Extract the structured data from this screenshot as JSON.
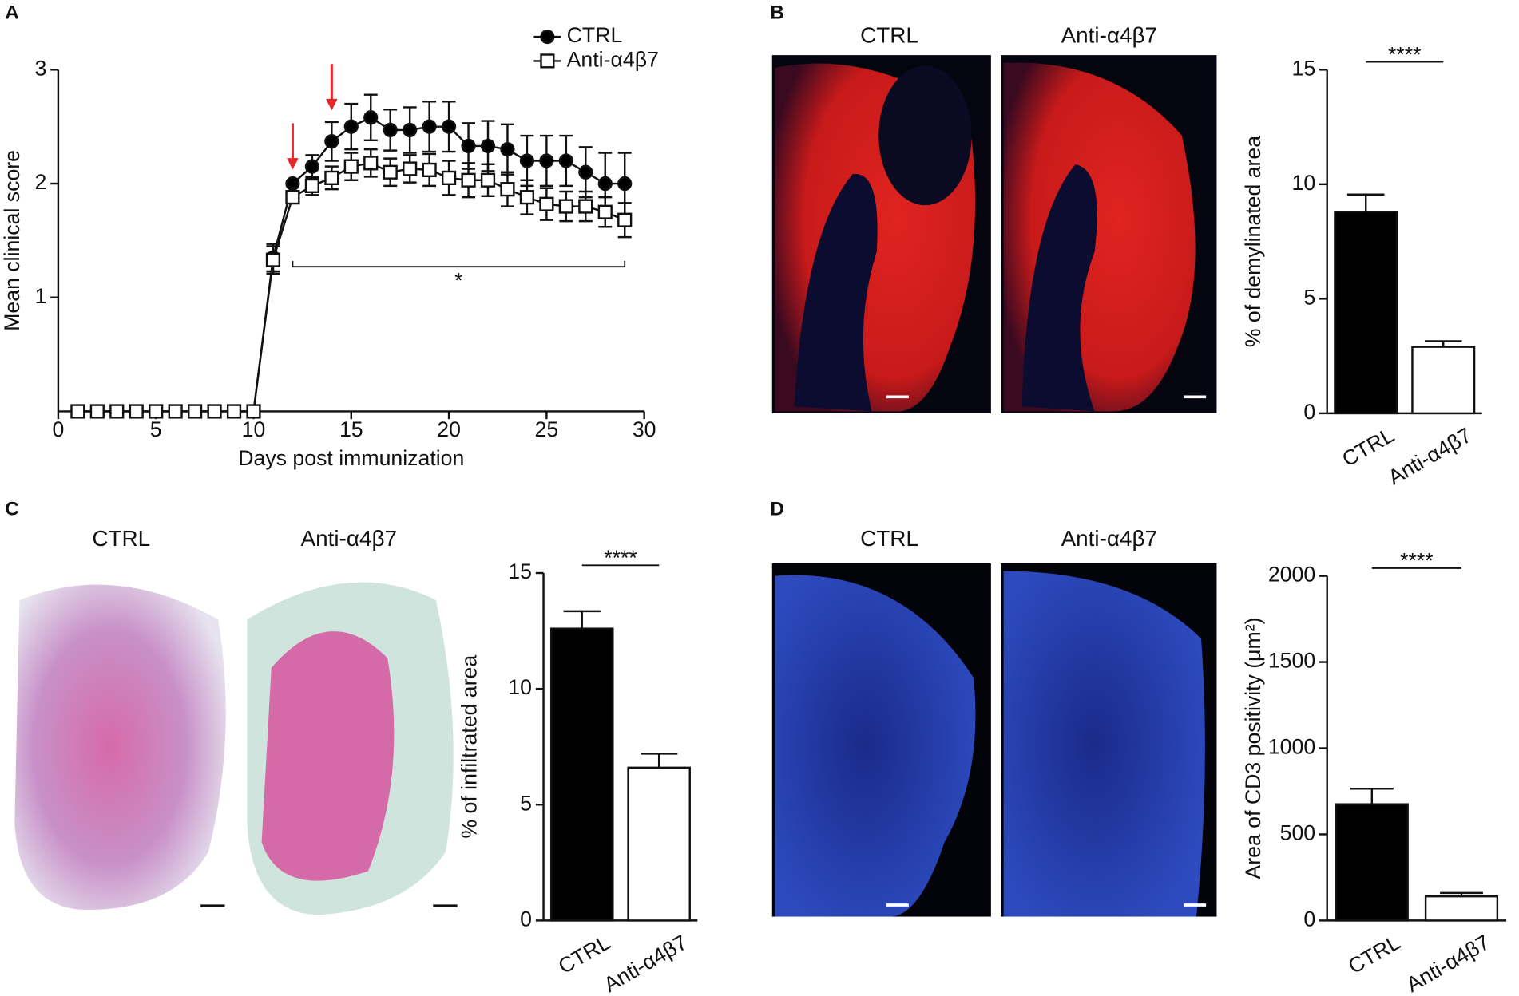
{
  "panels": [
    "A",
    "B",
    "C",
    "D"
  ],
  "micrographs": {
    "B": [
      "CTRL",
      "Anti-α4β7"
    ],
    "C": [
      "CTRL",
      "Anti-α4β7"
    ],
    "D": [
      "CTRL",
      "Anti-α4β7"
    ]
  },
  "chart_data": [
    {
      "type": "line",
      "xlabel": "Days post immunization",
      "ylabel": "Mean clinical score",
      "x": [
        1,
        2,
        3,
        4,
        5,
        6,
        7,
        8,
        9,
        10,
        11,
        12,
        13,
        14,
        15,
        16,
        17,
        18,
        19,
        20,
        21,
        22,
        23,
        24,
        25,
        26,
        27,
        28,
        29
      ],
      "series": [
        {
          "name": "CTRL",
          "color": "#000000",
          "marker": "circle",
          "values": [
            0,
            0,
            0,
            0,
            0,
            0,
            0,
            0,
            0,
            0,
            1.35,
            2.0,
            2.15,
            2.37,
            2.5,
            2.58,
            2.47,
            2.47,
            2.5,
            2.5,
            2.33,
            2.33,
            2.3,
            2.2,
            2.2,
            2.2,
            2.1,
            2.0,
            2.0
          ],
          "errors": [
            0,
            0,
            0,
            0,
            0,
            0,
            0,
            0,
            0,
            0,
            0.12,
            0.02,
            0.1,
            0.17,
            0.2,
            0.2,
            0.18,
            0.2,
            0.22,
            0.22,
            0.2,
            0.22,
            0.22,
            0.22,
            0.22,
            0.22,
            0.22,
            0.27,
            0.27
          ]
        },
        {
          "name": "Anti-α4β7",
          "color": "#ffffff",
          "marker": "square",
          "values": [
            0,
            0,
            0,
            0,
            0,
            0,
            0,
            0,
            0,
            0,
            1.33,
            1.88,
            1.98,
            2.05,
            2.15,
            2.18,
            2.1,
            2.13,
            2.12,
            2.05,
            2.03,
            2.03,
            1.95,
            1.88,
            1.82,
            1.8,
            1.8,
            1.75,
            1.68
          ],
          "errors": [
            0,
            0,
            0,
            0,
            0,
            0,
            0,
            0,
            0,
            0,
            0.12,
            0.05,
            0.08,
            0.1,
            0.12,
            0.12,
            0.12,
            0.12,
            0.14,
            0.15,
            0.15,
            0.14,
            0.15,
            0.15,
            0.14,
            0.13,
            0.13,
            0.13,
            0.15
          ]
        }
      ],
      "xlim": [
        0,
        30
      ],
      "xticks": [
        0,
        5,
        10,
        15,
        20,
        25,
        30
      ],
      "ylim": [
        0,
        3
      ],
      "yticks": [
        1,
        2,
        3
      ],
      "annotations": [
        {
          "text": "*",
          "x": [
            12,
            29
          ],
          "y": 1.27
        }
      ],
      "arrows_at": [
        12,
        14
      ],
      "arrow_color": "#e8262a",
      "legend": "top-right"
    },
    {
      "type": "bar",
      "ylabel": "% of demylinated area",
      "categories": [
        "CTRL",
        "Anti-α4β7"
      ],
      "values": [
        8.8,
        2.9
      ],
      "errors": [
        0.75,
        0.25
      ],
      "colors": [
        "#000000",
        "#ffffff"
      ],
      "ylim": [
        0,
        15
      ],
      "yticks": [
        0,
        5,
        10,
        15
      ],
      "significance": "****"
    },
    {
      "type": "bar",
      "ylabel": "% of infiltrated area",
      "categories": [
        "CTRL",
        "Anti-α4β7"
      ],
      "values": [
        12.6,
        6.6
      ],
      "errors": [
        0.75,
        0.6
      ],
      "colors": [
        "#000000",
        "#ffffff"
      ],
      "ylim": [
        0,
        15
      ],
      "yticks": [
        0,
        5,
        10,
        15
      ],
      "significance": "****"
    },
    {
      "type": "bar",
      "ylabel": "Area of CD3 positivity (μm²)",
      "categories": [
        "CTRL",
        "Anti-α4β7"
      ],
      "values": [
        675,
        140
      ],
      "errors": [
        90,
        20
      ],
      "colors": [
        "#000000",
        "#ffffff"
      ],
      "ylim": [
        0,
        2000
      ],
      "yticks": [
        0,
        500,
        1000,
        1500,
        2000
      ],
      "significance": "****"
    }
  ]
}
